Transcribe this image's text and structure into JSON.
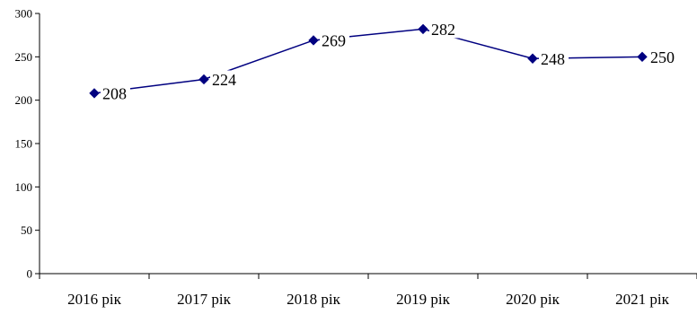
{
  "chart_data": {
    "type": "line",
    "categories": [
      "2016 рік",
      "2017 рік",
      "2018 рік",
      "2019 рік",
      "2020 рік",
      "2021 рік"
    ],
    "values": [
      208,
      224,
      269,
      282,
      248,
      250
    ],
    "ylim": [
      0,
      300
    ],
    "yticks": [
      0,
      50,
      100,
      150,
      200,
      250,
      300
    ],
    "grid": false,
    "legend": "none",
    "data_labels": true,
    "colors": {
      "line": "#000080",
      "marker": "#000080",
      "axis": "#000000"
    }
  }
}
